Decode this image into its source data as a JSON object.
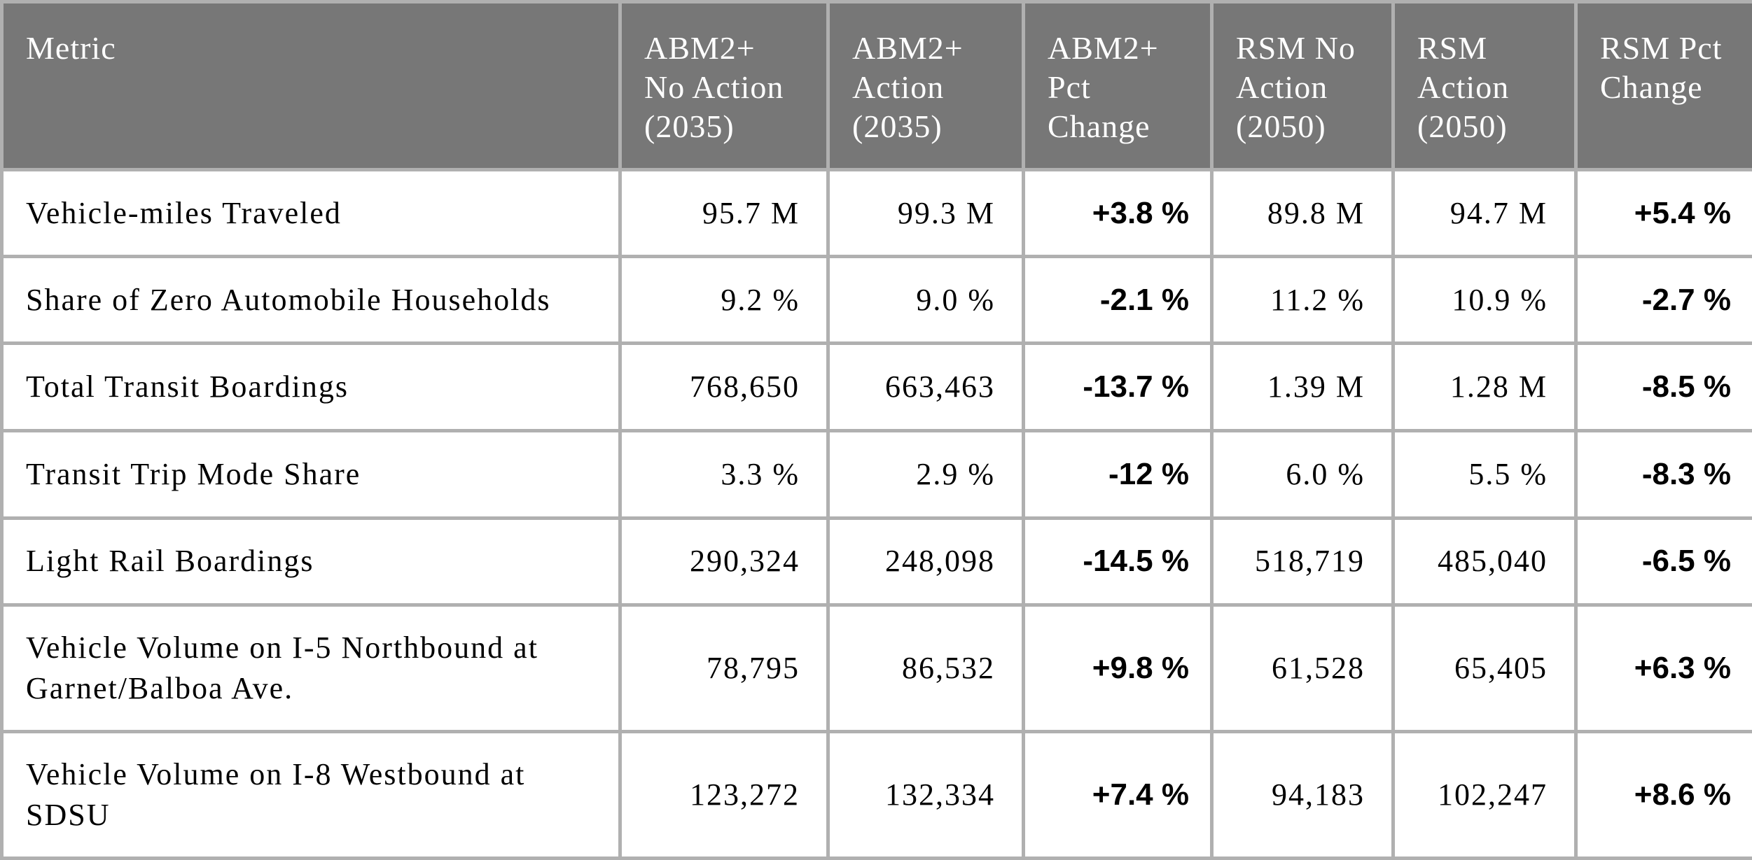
{
  "table": {
    "headers": [
      "Metric",
      "ABM2+ No Action (2035)",
      "ABM2+ Action (2035)",
      "ABM2+ Pct Change",
      "RSM No Action (2050)",
      "RSM Action (2050)",
      "RSM Pct Change"
    ],
    "rows": [
      [
        "Vehicle-miles Traveled",
        "95.7 M",
        "99.3 M",
        "+3.8 %",
        "89.8 M",
        "94.7 M",
        "+5.4 %"
      ],
      [
        "Share of Zero Automobile Households",
        "9.2 %",
        "9.0 %",
        "-2.1 %",
        "11.2 %",
        "10.9 %",
        "-2.7 %"
      ],
      [
        "Total Transit Boardings",
        "768,650",
        "663,463",
        "-13.7 %",
        "1.39 M",
        "1.28 M",
        "-8.5 %"
      ],
      [
        "Transit Trip Mode Share",
        "3.3 %",
        "2.9 %",
        "-12 %",
        "6.0 %",
        "5.5 %",
        "-8.3 %"
      ],
      [
        "Light Rail Boardings",
        "290,324",
        "248,098",
        "-14.5 %",
        "518,719",
        "485,040",
        "-6.5 %"
      ],
      [
        "Vehicle Volume on I-5 Northbound at Garnet/Balboa Ave.",
        "78,795",
        "86,532",
        "+9.8 %",
        "61,528",
        "65,405",
        "+6.3 %"
      ],
      [
        "Vehicle Volume on I-8 Westbound at SDSU",
        "123,272",
        "132,334",
        "+7.4 %",
        "94,183",
        "102,247",
        "+8.6 %"
      ]
    ]
  },
  "colors": {
    "header_background": "#777777",
    "header_text": "#ffffff",
    "grid_lines": "#b0b0b0",
    "body_text": "#000000"
  }
}
